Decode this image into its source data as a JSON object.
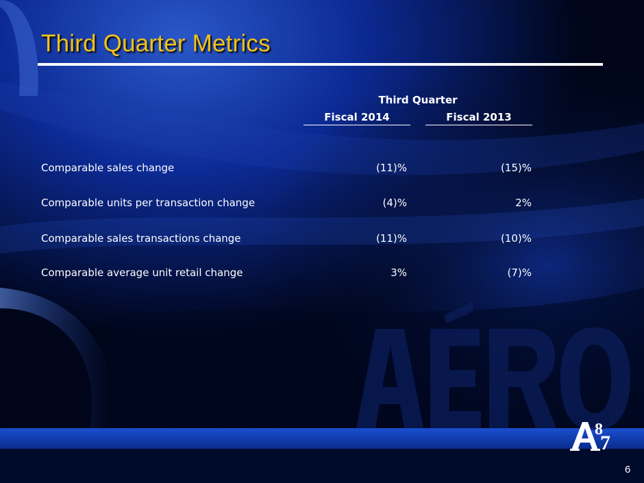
{
  "slide": {
    "title": "Third Quarter Metrics",
    "page_number": "6",
    "watermark_text": "AÉRO",
    "logo_text": "A87"
  },
  "table": {
    "group_header": "Third Quarter",
    "columns": [
      "Fiscal 2014",
      "Fiscal 2013"
    ],
    "rows": [
      {
        "label": "Comparable sales change",
        "values": [
          "(11)%",
          "(15)%"
        ]
      },
      {
        "label": "Comparable units per transaction change",
        "values": [
          "(4)%",
          "2%"
        ]
      },
      {
        "label": "Comparable sales transactions change",
        "values": [
          "(11)%",
          "(10)%"
        ]
      },
      {
        "label": "Comparable average unit retail change",
        "values": [
          "3%",
          "(7)%"
        ]
      }
    ]
  },
  "colors": {
    "title": "#f2c318",
    "text": "#ffffff",
    "background": "#000519"
  }
}
